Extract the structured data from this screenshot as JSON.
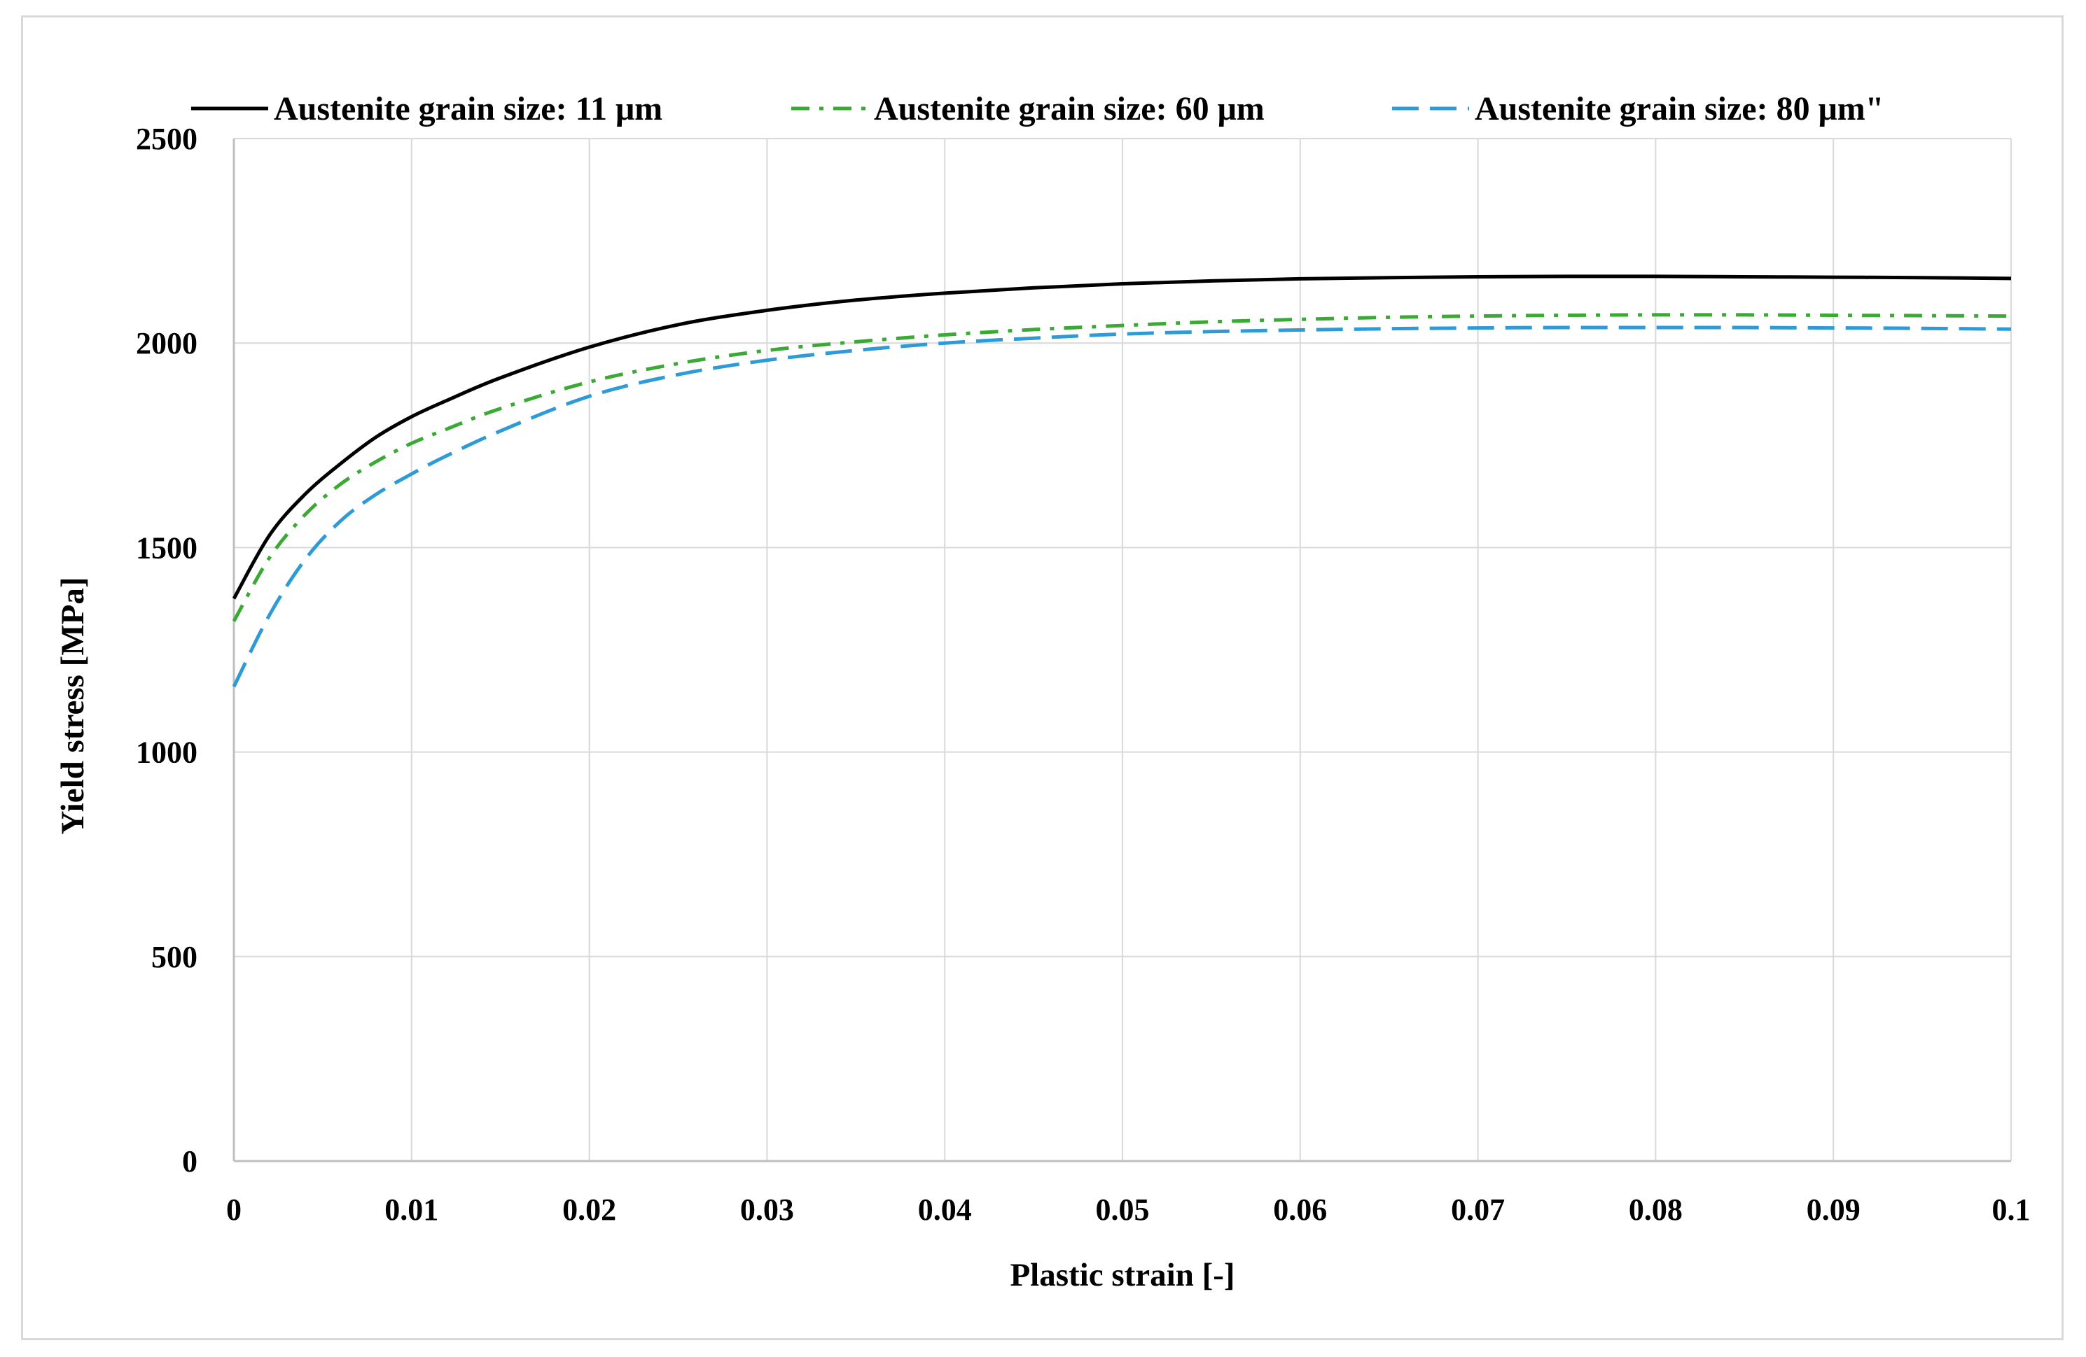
{
  "chart_data": {
    "type": "line",
    "title": "",
    "xlabel": "Plastic strain [-]",
    "ylabel": "Yield stress [MPa]",
    "xlim": [
      0,
      0.1
    ],
    "ylim": [
      0,
      2500
    ],
    "x_ticks": [
      "0",
      "0.01",
      "0.02",
      "0.03",
      "0.04",
      "0.05",
      "0.06",
      "0.07",
      "0.08",
      "0.09",
      "0.1"
    ],
    "y_ticks": [
      "0",
      "500",
      "1000",
      "1500",
      "2000",
      "2500"
    ],
    "grid": true,
    "legend_position": "top",
    "x": [
      0,
      0.002,
      0.004,
      0.006,
      0.008,
      0.01,
      0.012,
      0.015,
      0.02,
      0.025,
      0.03,
      0.035,
      0.04,
      0.045,
      0.05,
      0.055,
      0.06,
      0.065,
      0.07,
      0.075,
      0.08,
      0.085,
      0.09,
      0.095,
      0.1
    ],
    "series": [
      {
        "name": "Austenite grain size: 11 μm",
        "color": "#000000",
        "dash": "solid",
        "values": [
          1375,
          1530,
          1630,
          1705,
          1770,
          1820,
          1860,
          1915,
          1990,
          2045,
          2080,
          2105,
          2122,
          2135,
          2145,
          2152,
          2157,
          2160,
          2162,
          2163,
          2163,
          2162,
          2161,
          2160,
          2158
        ]
      },
      {
        "name": "Austenite grain size: 60 μm",
        "color": "#3aaa35",
        "dash": "dashdot",
        "values": [
          1320,
          1475,
          1580,
          1655,
          1710,
          1755,
          1790,
          1840,
          1905,
          1950,
          1982,
          2003,
          2020,
          2033,
          2043,
          2052,
          2058,
          2063,
          2066,
          2068,
          2069,
          2069,
          2068,
          2067,
          2066
        ]
      },
      {
        "name": "Austenite grain size: 80 μm\"",
        "color": "#2e9bd6",
        "dash": "dashed",
        "values": [
          1160,
          1335,
          1470,
          1565,
          1630,
          1680,
          1725,
          1785,
          1870,
          1923,
          1958,
          1982,
          2000,
          2012,
          2022,
          2028,
          2032,
          2035,
          2037,
          2038,
          2038,
          2038,
          2037,
          2036,
          2034
        ]
      }
    ]
  }
}
